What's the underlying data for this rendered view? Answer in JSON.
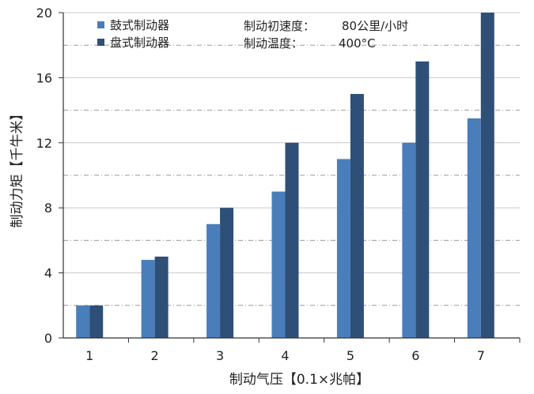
{
  "chart_data": {
    "type": "bar",
    "categories": [
      "1",
      "2",
      "3",
      "4",
      "5",
      "6",
      "7"
    ],
    "series": [
      {
        "name": "鼓式制动器",
        "color": "#4a7ebb",
        "values": [
          2,
          4.8,
          7,
          9,
          11,
          12,
          13.5
        ]
      },
      {
        "name": "盘式制动器",
        "color": "#2e4f78",
        "values": [
          2,
          5,
          8,
          12,
          15,
          17,
          20
        ]
      }
    ],
    "title": "",
    "xlabel": "制动气压【0.1×兆帕】",
    "ylabel": "制动力矩【千牛米】",
    "ylim": [
      0,
      20
    ],
    "yticks": [
      "0",
      "4",
      "8",
      "12",
      "16",
      "20"
    ],
    "grid": true,
    "legend_position": "top-left",
    "annotations": [
      {
        "label": "制动初速度：",
        "value": "80公里/小时"
      },
      {
        "label": "制动温度：",
        "value": "400°C"
      }
    ]
  }
}
